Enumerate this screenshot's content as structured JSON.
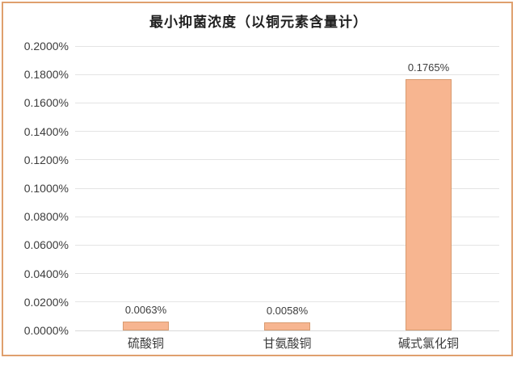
{
  "chart_data": {
    "type": "bar",
    "title": "最小抑菌浓度（以铜元素含量计）",
    "categories": [
      "硫酸铜",
      "甘氨酸铜",
      "碱式氯化铜"
    ],
    "values": [
      0.0063,
      0.0058,
      0.1765
    ],
    "value_labels": [
      "0.0063%",
      "0.0058%",
      "0.1765%"
    ],
    "unit": "%",
    "ylim": [
      0,
      0.2
    ],
    "y_ticks": [
      "0.2000%",
      "0.1800%",
      "0.1600%",
      "0.1400%",
      "0.1200%",
      "0.1000%",
      "0.0800%",
      "0.0600%",
      "0.0400%",
      "0.0200%",
      "0.0000%"
    ],
    "grid": true,
    "legend": "none",
    "colors": {
      "bar_fill": "#f7b590",
      "bar_border": "#d89b70",
      "gridline": "#e4e4e4",
      "axis_line": "#d8d8d8",
      "frame_border": "#dfa06e",
      "text": "#3d3d3d"
    }
  }
}
